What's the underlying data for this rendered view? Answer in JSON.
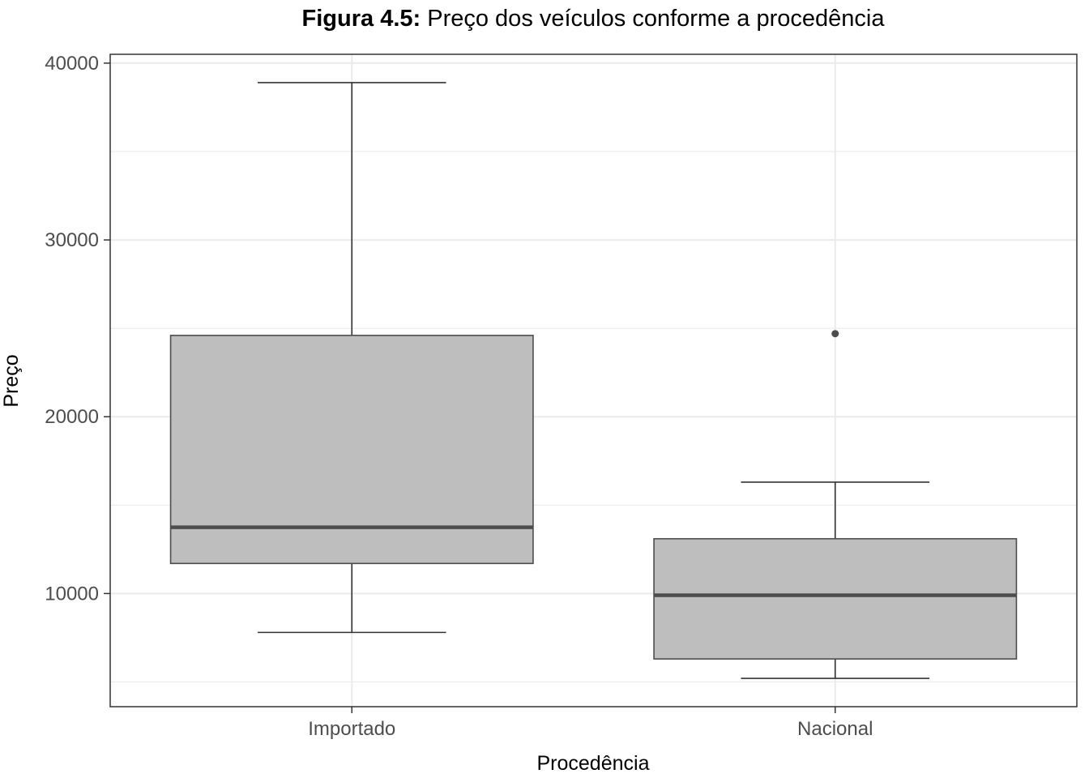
{
  "title_bold": "Figura 4.5:",
  "title_rest": " Preço dos veículos conforme a procedência",
  "chart_data": {
    "type": "boxplot",
    "xlabel": "Procedência",
    "ylabel": "Preço",
    "ylim": [
      3600,
      40500
    ],
    "yticks": [
      10000,
      20000,
      30000,
      40000
    ],
    "grid": true,
    "categories": [
      "Importado",
      "Nacional"
    ],
    "boxes": [
      {
        "category": "Importado",
        "whisker_low": 7800,
        "q1": 11700,
        "median": 13750,
        "q3": 24600,
        "whisker_high": 38900,
        "outliers": []
      },
      {
        "category": "Nacional",
        "whisker_low": 5200,
        "q1": 6300,
        "median": 9900,
        "q3": 13100,
        "whisker_high": 16300,
        "outliers": [
          24700
        ]
      }
    ],
    "colors": {
      "box_fill": "#bebebe",
      "box_stroke": "#4d4d4d",
      "median": "#4d4d4d",
      "grid": "#ebebeb",
      "panel_border": "#333333",
      "outlier": "#4d4d4d"
    }
  }
}
